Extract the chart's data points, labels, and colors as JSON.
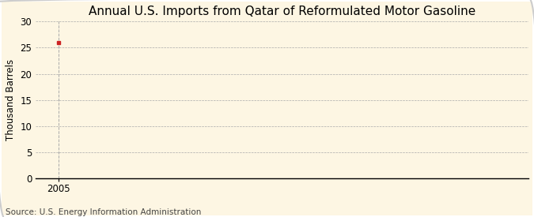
{
  "title": "Annual U.S. Imports from Qatar of Reformulated Motor Gasoline",
  "ylabel": "Thousand Barrels",
  "source_text": "Source: U.S. Energy Information Administration",
  "x_data": [
    2005
  ],
  "y_data": [
    26
  ],
  "point_color": "#cc2222",
  "xlim": [
    2004.2,
    2021
  ],
  "ylim": [
    0,
    30
  ],
  "yticks": [
    0,
    5,
    10,
    15,
    20,
    25,
    30
  ],
  "xticks": [
    2005
  ],
  "background_color": "#fdf6e3",
  "plot_bg_color": "#fdf6e3",
  "grid_color": "#aaaaaa",
  "vline_color": "#aaaaaa",
  "title_fontsize": 11,
  "label_fontsize": 8.5,
  "tick_fontsize": 8.5,
  "source_fontsize": 7.5,
  "border_color": "#cccccc"
}
